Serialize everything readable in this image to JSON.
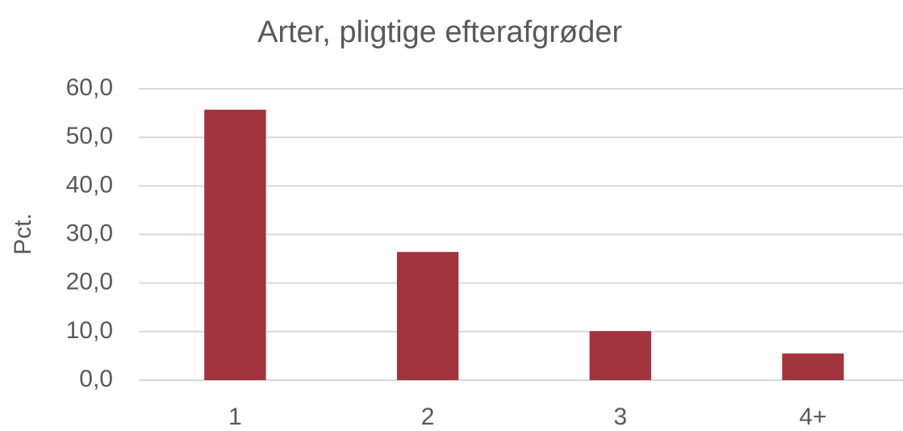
{
  "chart_data": {
    "type": "bar",
    "title": "Arter, pligtige efterafgrøder",
    "y_label": "Pct.",
    "categories": [
      "1",
      "2",
      "3",
      "4+"
    ],
    "values": [
      55.7,
      26.4,
      10.1,
      5.5
    ],
    "color": "#a3333d",
    "ylim": [
      0,
      60
    ],
    "yticks": [
      {
        "value": 0,
        "label": "0,0"
      },
      {
        "value": 10,
        "label": "10,0"
      },
      {
        "value": 20,
        "label": "20,0"
      },
      {
        "value": 30,
        "label": "30,0"
      },
      {
        "value": 40,
        "label": "40,0"
      },
      {
        "value": 50,
        "label": "50,0"
      },
      {
        "value": 60,
        "label": "60,0"
      }
    ],
    "grid": true
  }
}
